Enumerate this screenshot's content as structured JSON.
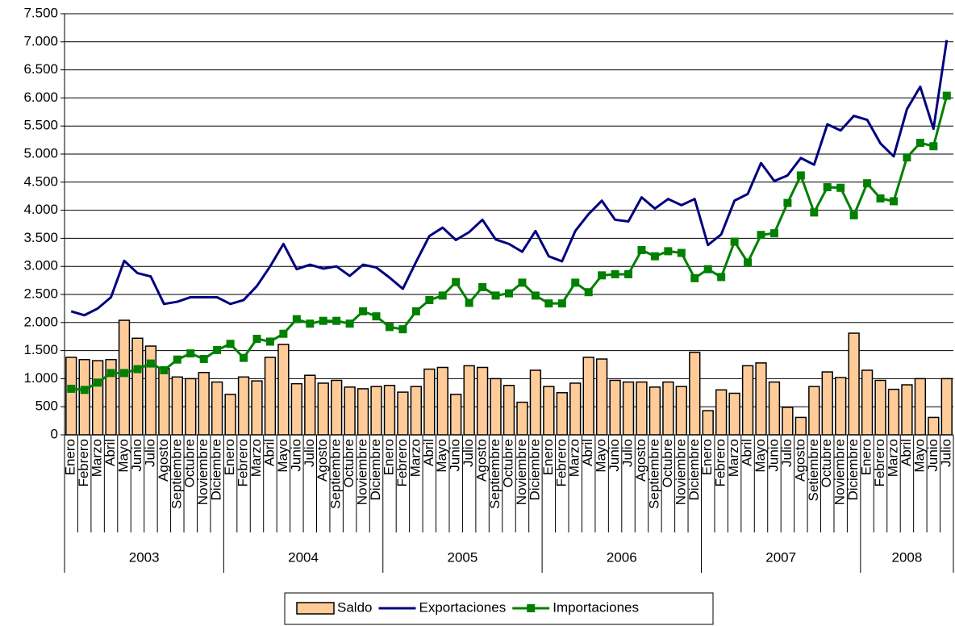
{
  "chart_data": {
    "type": "bar_line",
    "groups": [
      {
        "label": "2003",
        "categories": [
          "Enero",
          "Febrero",
          "Marzo",
          "Abril",
          "Mayo",
          "Junio",
          "Julio",
          "Agosto",
          "Septiembre",
          "Octubre",
          "Noviembre",
          "Diciembre"
        ]
      },
      {
        "label": "2004",
        "categories": [
          "Enero",
          "Febrero",
          "Marzo",
          "Abril",
          "Mayo",
          "Junio",
          "Julio",
          "Agosto",
          "Septiembre",
          "Octubre",
          "Noviembre",
          "Diciembre"
        ]
      },
      {
        "label": "2005",
        "categories": [
          "Enero",
          "Febrero",
          "Marzo",
          "Abril",
          "Mayo",
          "Junio",
          "Julio",
          "Agosto",
          "Septiembre",
          "Octubre",
          "Noviembre",
          "Diciembre"
        ]
      },
      {
        "label": "2006",
        "categories": [
          "Enero",
          "Febrero",
          "Marzo",
          "Abril",
          "Mayo",
          "Junio",
          "Julio",
          "Agosto",
          "Septiembre",
          "Octubre",
          "Noviembre",
          "Diciembre"
        ]
      },
      {
        "label": "2007",
        "categories": [
          "Enero",
          "Febrero",
          "Marzo",
          "Abril",
          "Mayo",
          "Junio",
          "Julio",
          "Agosto",
          "Setiembre",
          "Octubre",
          "Noviembre",
          "Diciembre"
        ]
      },
      {
        "label": "2008",
        "categories": [
          "Enero",
          "Febrero",
          "Marzo",
          "Abril",
          "Mayo",
          "Junio",
          "Julio"
        ]
      }
    ],
    "series": [
      {
        "name": "Saldo",
        "type": "bar",
        "color": "#FFCC99",
        "values": [
          1380,
          1340,
          1320,
          1340,
          2040,
          1720,
          1580,
          1180,
          1030,
          1000,
          1110,
          940,
          720,
          1030,
          960,
          1380,
          1610,
          910,
          1060,
          920,
          970,
          850,
          820,
          860,
          880,
          760,
          860,
          1170,
          1200,
          720,
          1230,
          1200,
          1000,
          880,
          580,
          1150,
          860,
          750,
          920,
          1380,
          1350,
          970,
          940,
          940,
          850,
          940,
          860,
          1470,
          430,
          800,
          740,
          1230,
          1280,
          940,
          490,
          310,
          860,
          1120,
          1020,
          1810,
          1150,
          970,
          810,
          890,
          1000,
          310,
          1000
        ]
      },
      {
        "name": "Exportaciones",
        "type": "line",
        "color": "#000080",
        "values": [
          2200,
          2130,
          2250,
          2450,
          3100,
          2880,
          2820,
          2330,
          2370,
          2450,
          2450,
          2450,
          2330,
          2400,
          2650,
          3000,
          3400,
          2950,
          3030,
          2960,
          3000,
          2830,
          3030,
          2980,
          2800,
          2600,
          3080,
          3540,
          3690,
          3470,
          3610,
          3830,
          3480,
          3400,
          3260,
          3630,
          3180,
          3090,
          3630,
          3930,
          4170,
          3830,
          3800,
          4230,
          4030,
          4200,
          4090,
          4200,
          3380,
          3570,
          4170,
          4290,
          4840,
          4520,
          4620,
          4930,
          4810,
          5530,
          5420,
          5680,
          5610,
          5190,
          4960,
          5800,
          6200,
          5450,
          7030
        ]
      },
      {
        "name": "Importaciones",
        "type": "line",
        "marker": "square",
        "color": "#008000",
        "values": [
          820,
          800,
          930,
          1100,
          1100,
          1170,
          1270,
          1150,
          1340,
          1450,
          1350,
          1510,
          1620,
          1370,
          1710,
          1660,
          1800,
          2060,
          1980,
          2030,
          2030,
          1980,
          2200,
          2110,
          1920,
          1880,
          2200,
          2400,
          2480,
          2720,
          2350,
          2630,
          2480,
          2520,
          2710,
          2480,
          2340,
          2340,
          2710,
          2540,
          2840,
          2860,
          2860,
          3290,
          3180,
          3270,
          3240,
          2790,
          2950,
          2810,
          3440,
          3070,
          3560,
          3590,
          4130,
          4620,
          3960,
          4410,
          4400,
          3910,
          4480,
          4210,
          4160,
          4940,
          5200,
          5140,
          6040
        ]
      }
    ],
    "ylim": [
      0,
      7500
    ],
    "yticks": [
      0,
      500,
      {
        "value": 1000,
        "label": "1.000"
      },
      {
        "value": 1500,
        "label": "1.500"
      },
      {
        "value": 2000,
        "label": "2.000"
      },
      {
        "value": 2500,
        "label": "2.500"
      },
      {
        "value": 3000,
        "label": "3.000"
      },
      {
        "value": 3500,
        "label": "3.500"
      },
      {
        "value": 4000,
        "label": "4.000"
      },
      {
        "value": 4500,
        "label": "4.500"
      },
      {
        "value": 5000,
        "label": "5.000"
      },
      {
        "value": 5500,
        "label": "5.500"
      },
      {
        "value": 6000,
        "label": "6.000"
      },
      {
        "value": 6500,
        "label": "6.500"
      },
      {
        "value": 7000,
        "label": "7.000"
      },
      {
        "value": 7500,
        "label": "7.500"
      }
    ],
    "grid": true,
    "legend": "bottom"
  }
}
